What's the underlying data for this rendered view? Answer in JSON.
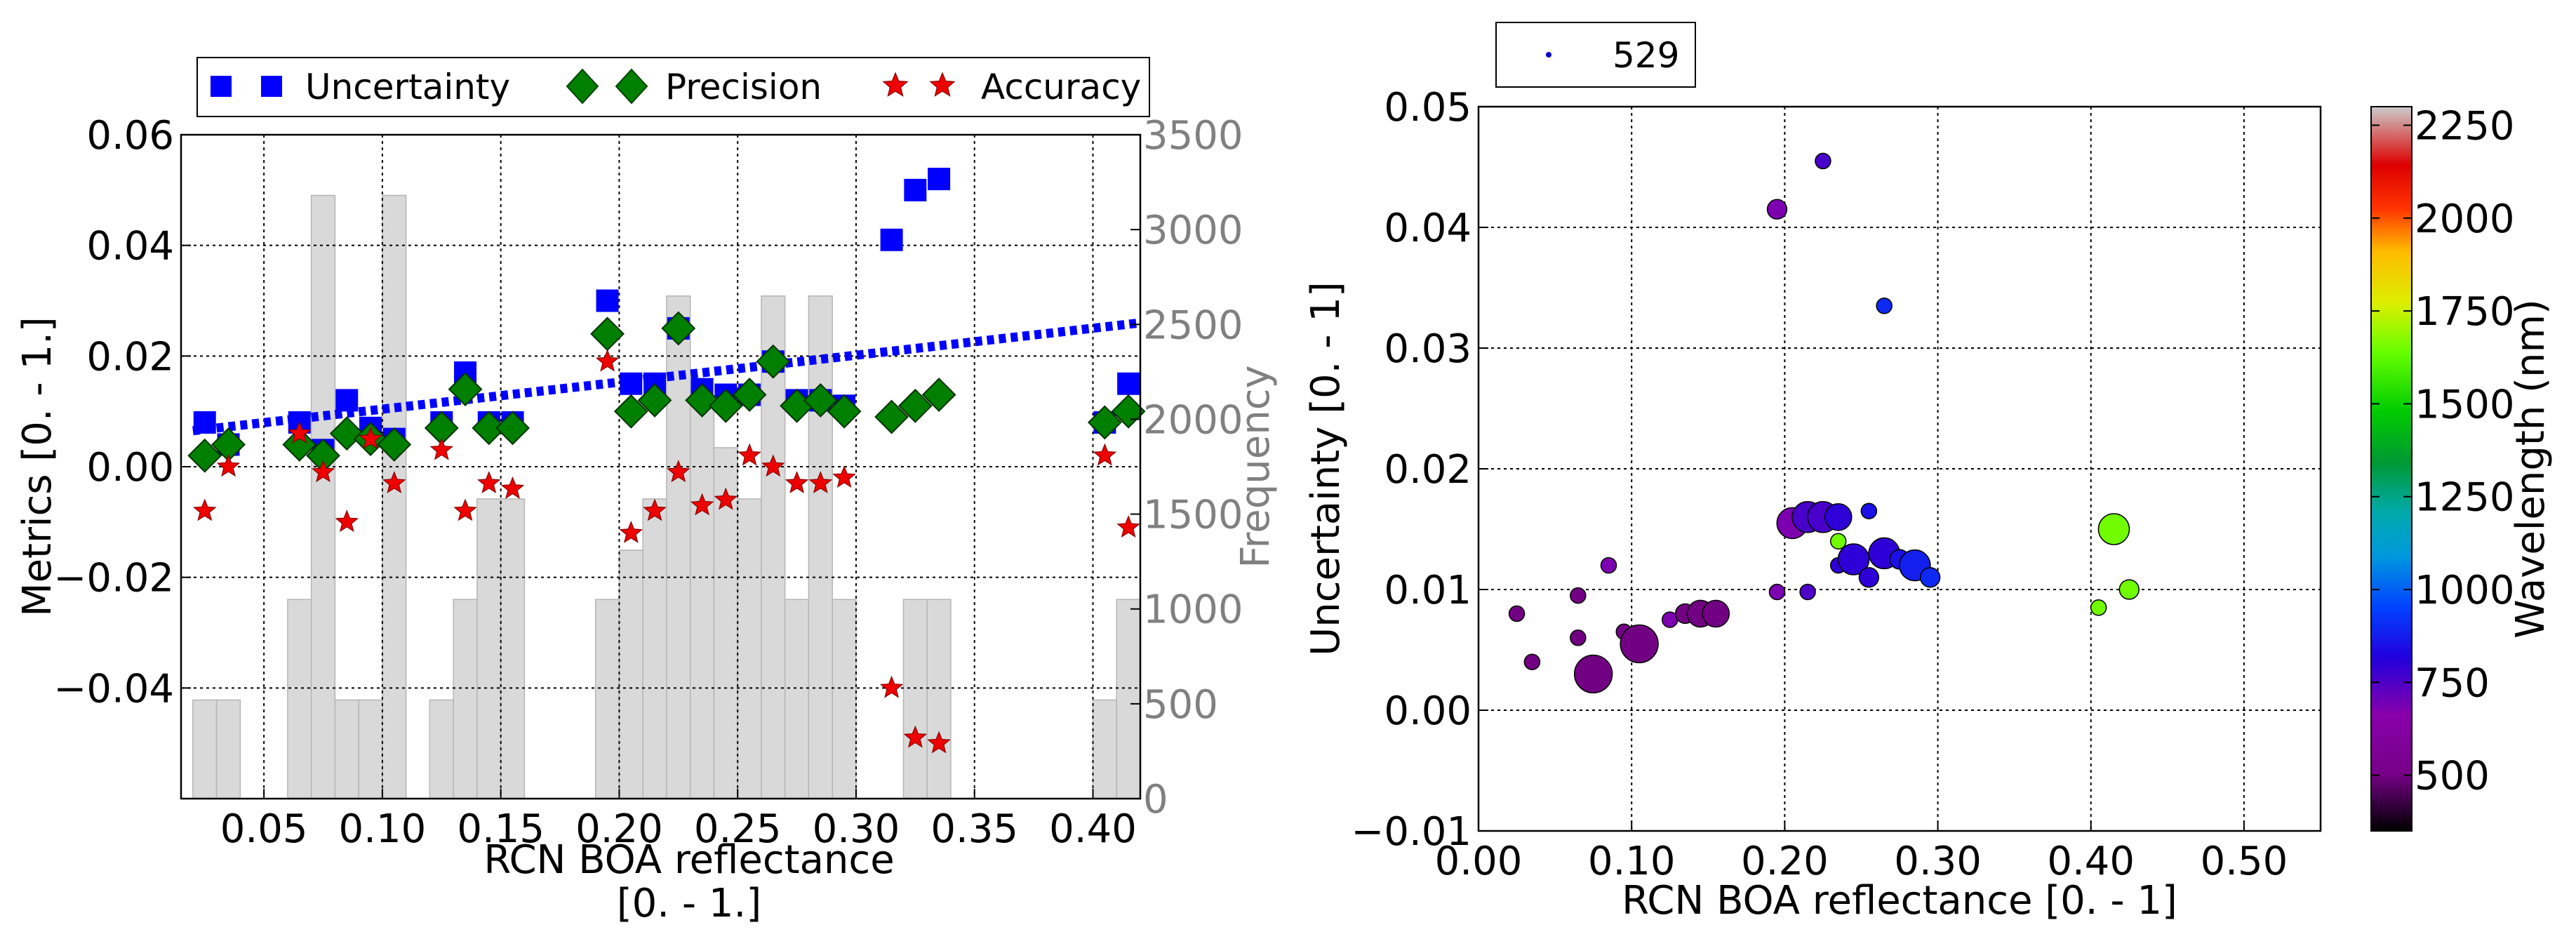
{
  "chart_data": [
    {
      "type": "bar+scatter",
      "xlabel_line1": "RCN BOA reflectance",
      "xlabel_line2": "[0. - 1.]",
      "ylabel": "Metrics [0. - 1.]",
      "y2label": "Frequency",
      "xlim": [
        0.015,
        0.42
      ],
      "ylim": [
        -0.06,
        0.06
      ],
      "y2lim": [
        0,
        3500
      ],
      "xticks": [
        0.05,
        0.1,
        0.15,
        0.2,
        0.25,
        0.3,
        0.35,
        0.4
      ],
      "xtick_labels": [
        "0.05",
        "0.10",
        "0.15",
        "0.20",
        "0.25",
        "0.30",
        "0.35",
        "0.40"
      ],
      "yticks": [
        0.06,
        0.04,
        0.02,
        0.0,
        -0.02,
        -0.04
      ],
      "ytick_labels": [
        "0.06",
        "0.04",
        "0.02",
        "0.00",
        "−0.02",
        "−0.04"
      ],
      "y2ticks": [
        3500,
        3000,
        2500,
        2000,
        1500,
        1000,
        500,
        0
      ],
      "y2tick_labels": [
        "3500",
        "3000",
        "2500",
        "2000",
        "1500",
        "1000",
        "500",
        "0"
      ],
      "legend": {
        "placement": "top",
        "entries": [
          {
            "label": "Uncertainty",
            "marker": "square",
            "color": "#0000ff"
          },
          {
            "label": "Precision",
            "marker": "diamond",
            "color": "#007f00"
          },
          {
            "label": "Accuracy",
            "marker": "star",
            "color": "#ff0000"
          }
        ]
      },
      "frequency_bars": {
        "color": "#d9d9d9",
        "bin_width": 0.01,
        "centers": [
          0.025,
          0.035,
          0.065,
          0.075,
          0.085,
          0.095,
          0.105,
          0.125,
          0.135,
          0.145,
          0.155,
          0.195,
          0.205,
          0.215,
          0.225,
          0.235,
          0.245,
          0.255,
          0.265,
          0.275,
          0.285,
          0.295,
          0.325,
          0.335,
          0.405,
          0.415
        ],
        "values": [
          520,
          520,
          1050,
          3180,
          520,
          520,
          3180,
          520,
          1050,
          1580,
          1580,
          1050,
          1310,
          1580,
          2650,
          2120,
          1850,
          1580,
          2650,
          1050,
          2650,
          1050,
          1050,
          1050,
          520,
          1050
        ]
      },
      "series": [
        {
          "name": "Uncertainty",
          "x": [
            0.025,
            0.035,
            0.065,
            0.075,
            0.085,
            0.095,
            0.105,
            0.125,
            0.135,
            0.145,
            0.155,
            0.195,
            0.205,
            0.215,
            0.225,
            0.235,
            0.245,
            0.255,
            0.265,
            0.275,
            0.285,
            0.295,
            0.315,
            0.325,
            0.335,
            0.405,
            0.415
          ],
          "y": [
            0.008,
            0.004,
            0.008,
            0.003,
            0.012,
            0.007,
            0.005,
            0.008,
            0.017,
            0.008,
            0.008,
            0.03,
            0.015,
            0.015,
            0.025,
            0.014,
            0.013,
            0.013,
            0.019,
            0.012,
            0.012,
            0.011,
            0.041,
            0.05,
            0.052,
            0.008,
            0.015
          ]
        },
        {
          "name": "Precision",
          "x": [
            0.025,
            0.035,
            0.065,
            0.075,
            0.085,
            0.095,
            0.105,
            0.125,
            0.135,
            0.145,
            0.155,
            0.195,
            0.205,
            0.215,
            0.225,
            0.235,
            0.245,
            0.255,
            0.265,
            0.275,
            0.285,
            0.295,
            0.315,
            0.325,
            0.335,
            0.405,
            0.415
          ],
          "y": [
            0.002,
            0.004,
            0.004,
            0.002,
            0.006,
            0.005,
            0.004,
            0.007,
            0.014,
            0.007,
            0.007,
            0.024,
            0.01,
            0.012,
            0.025,
            0.012,
            0.011,
            0.013,
            0.019,
            0.011,
            0.012,
            0.01,
            0.009,
            0.011,
            0.013,
            0.008,
            0.01
          ]
        },
        {
          "name": "Accuracy",
          "x": [
            0.025,
            0.035,
            0.065,
            0.075,
            0.085,
            0.095,
            0.105,
            0.125,
            0.135,
            0.145,
            0.155,
            0.195,
            0.205,
            0.215,
            0.225,
            0.235,
            0.245,
            0.255,
            0.265,
            0.275,
            0.285,
            0.295,
            0.315,
            0.325,
            0.335,
            0.405,
            0.415
          ],
          "y": [
            -0.008,
            0.0,
            0.006,
            -0.001,
            -0.01,
            0.005,
            -0.003,
            0.003,
            -0.008,
            -0.003,
            -0.004,
            0.019,
            -0.012,
            -0.008,
            -0.001,
            -0.007,
            -0.006,
            0.002,
            0.0,
            -0.003,
            -0.003,
            -0.002,
            -0.04,
            -0.049,
            -0.05,
            0.002,
            -0.011
          ]
        }
      ],
      "trendline": {
        "color": "#0000ff",
        "style": "dotted",
        "x": [
          0.02,
          0.42
        ],
        "y": [
          0.0065,
          0.026
        ]
      }
    },
    {
      "type": "scatter",
      "xlabel": "RCN BOA reflectance [0. - 1]",
      "ylabel": "Uncertainty [0. - 1]",
      "xlim": [
        0.0,
        0.55
      ],
      "ylim": [
        -0.01,
        0.05
      ],
      "xticks": [
        0.0,
        0.1,
        0.2,
        0.3,
        0.4,
        0.5
      ],
      "xtick_labels": [
        "0.00",
        "0.10",
        "0.20",
        "0.30",
        "0.40",
        "0.50"
      ],
      "yticks": [
        0.05,
        0.04,
        0.03,
        0.02,
        0.01,
        0.0,
        -0.01
      ],
      "ytick_labels": [
        "0.05",
        "0.04",
        "0.03",
        "0.02",
        "0.01",
        "0.00",
        "−0.01"
      ],
      "legend": {
        "label": "529",
        "placement": "top-left"
      },
      "colorbar": {
        "label": "Wavelength (nm)",
        "range": [
          350,
          2300
        ],
        "ticks": [
          2250,
          2000,
          1750,
          1500,
          1250,
          1000,
          750,
          500
        ],
        "tick_labels": [
          "2250",
          "2000",
          "1750",
          "1500",
          "1250",
          "1000",
          "750",
          "500"
        ],
        "colormap": "nipy_spectral"
      },
      "points": [
        {
          "x": 0.025,
          "y": 0.008,
          "size": 1.0,
          "wavelength": 500
        },
        {
          "x": 0.035,
          "y": 0.004,
          "size": 1.0,
          "wavelength": 500
        },
        {
          "x": 0.065,
          "y": 0.0095,
          "size": 1.0,
          "wavelength": 500
        },
        {
          "x": 0.065,
          "y": 0.006,
          "size": 1.0,
          "wavelength": 500
        },
        {
          "x": 0.075,
          "y": 0.003,
          "size": 6.0,
          "wavelength": 500
        },
        {
          "x": 0.085,
          "y": 0.012,
          "size": 1.0,
          "wavelength": 680
        },
        {
          "x": 0.095,
          "y": 0.0065,
          "size": 1.0,
          "wavelength": 500
        },
        {
          "x": 0.105,
          "y": 0.0055,
          "size": 6.0,
          "wavelength": 500
        },
        {
          "x": 0.125,
          "y": 0.0075,
          "size": 1.0,
          "wavelength": 680
        },
        {
          "x": 0.135,
          "y": 0.008,
          "size": 1.6,
          "wavelength": 500
        },
        {
          "x": 0.145,
          "y": 0.008,
          "size": 3.0,
          "wavelength": 500
        },
        {
          "x": 0.155,
          "y": 0.008,
          "size": 3.0,
          "wavelength": 500
        },
        {
          "x": 0.195,
          "y": 0.0415,
          "size": 1.6,
          "wavelength": 680
        },
        {
          "x": 0.195,
          "y": 0.0098,
          "size": 1.0,
          "wavelength": 680
        },
        {
          "x": 0.205,
          "y": 0.0155,
          "size": 4.0,
          "wavelength": 680
        },
        {
          "x": 0.215,
          "y": 0.0098,
          "size": 1.0,
          "wavelength": 750
        },
        {
          "x": 0.215,
          "y": 0.016,
          "size": 4.0,
          "wavelength": 760
        },
        {
          "x": 0.225,
          "y": 0.0455,
          "size": 1.0,
          "wavelength": 760
        },
        {
          "x": 0.225,
          "y": 0.016,
          "size": 4.0,
          "wavelength": 760
        },
        {
          "x": 0.235,
          "y": 0.016,
          "size": 3.0,
          "wavelength": 800
        },
        {
          "x": 0.235,
          "y": 0.014,
          "size": 1.0,
          "wavelength": 1650
        },
        {
          "x": 0.235,
          "y": 0.012,
          "size": 1.0,
          "wavelength": 800
        },
        {
          "x": 0.245,
          "y": 0.0125,
          "size": 4.0,
          "wavelength": 800
        },
        {
          "x": 0.255,
          "y": 0.0165,
          "size": 1.0,
          "wavelength": 850
        },
        {
          "x": 0.255,
          "y": 0.011,
          "size": 1.6,
          "wavelength": 800
        },
        {
          "x": 0.265,
          "y": 0.0335,
          "size": 1.0,
          "wavelength": 900
        },
        {
          "x": 0.265,
          "y": 0.013,
          "size": 4.0,
          "wavelength": 800
        },
        {
          "x": 0.275,
          "y": 0.0125,
          "size": 1.6,
          "wavelength": 850
        },
        {
          "x": 0.285,
          "y": 0.012,
          "size": 4.0,
          "wavelength": 880
        },
        {
          "x": 0.295,
          "y": 0.011,
          "size": 1.6,
          "wavelength": 900
        },
        {
          "x": 0.405,
          "y": 0.0085,
          "size": 1.0,
          "wavelength": 1650
        },
        {
          "x": 0.415,
          "y": 0.015,
          "size": 4.0,
          "wavelength": 1650
        },
        {
          "x": 0.425,
          "y": 0.01,
          "size": 1.6,
          "wavelength": 1650
        }
      ]
    }
  ]
}
